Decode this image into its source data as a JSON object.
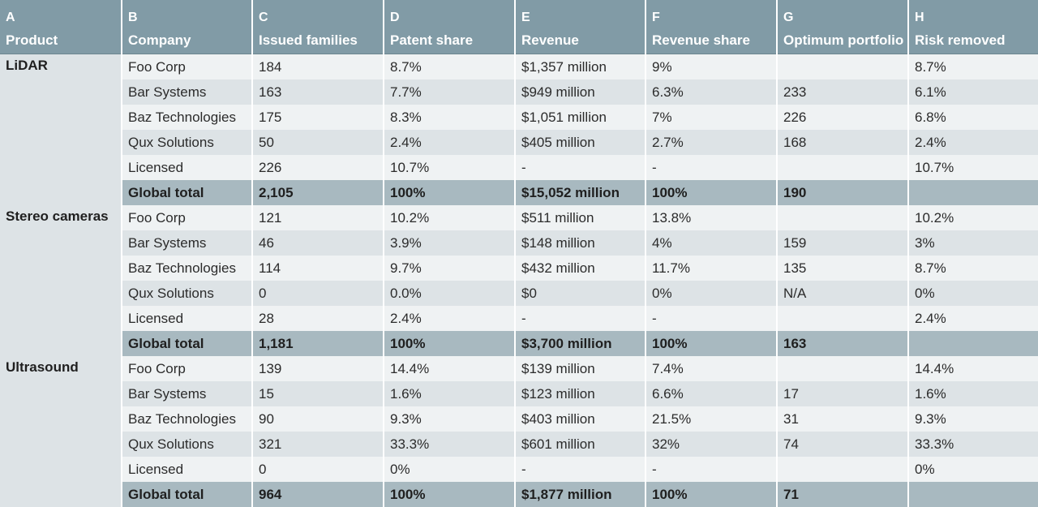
{
  "columns": {
    "letters": [
      "A",
      "B",
      "C",
      "D",
      "E",
      "F",
      "G",
      "H"
    ],
    "headers": [
      "Product",
      "Company",
      "Issued families",
      "Patent share",
      "Revenue",
      "Revenue share",
      "Optimum portfolio",
      "Risk removed"
    ]
  },
  "groups": [
    {
      "product": "LiDAR",
      "rows": [
        {
          "company": "Foo Corp",
          "issued": "184",
          "patent_share": "8.7%",
          "revenue": "$1,357 million",
          "revenue_share": "9%",
          "optimum": "",
          "risk": "8.7%"
        },
        {
          "company": "Bar Systems",
          "issued": "163",
          "patent_share": "7.7%",
          "revenue": "$949 million",
          "revenue_share": "6.3%",
          "optimum": "233",
          "risk": "6.1%"
        },
        {
          "company": "Baz Technologies",
          "issued": "175",
          "patent_share": "8.3%",
          "revenue": "$1,051 million",
          "revenue_share": "7%",
          "optimum": "226",
          "risk": "6.8%"
        },
        {
          "company": "Qux Solutions",
          "issued": "50",
          "patent_share": "2.4%",
          "revenue": "$405 million",
          "revenue_share": "2.7%",
          "optimum": "168",
          "risk": "2.4%"
        },
        {
          "company": "Licensed",
          "issued": "226",
          "patent_share": "10.7%",
          "revenue": "-",
          "revenue_share": "-",
          "optimum": "",
          "risk": "10.7%"
        }
      ],
      "total": {
        "company": "Global total",
        "issued": "2,105",
        "patent_share": "100%",
        "revenue": "$15,052 million",
        "revenue_share": "100%",
        "optimum": "190",
        "risk": ""
      }
    },
    {
      "product": "Stereo cameras",
      "rows": [
        {
          "company": "Foo Corp",
          "issued": "121",
          "patent_share": "10.2%",
          "revenue": "$511 million",
          "revenue_share": "13.8%",
          "optimum": "",
          "risk": "10.2%"
        },
        {
          "company": "Bar Systems",
          "issued": "46",
          "patent_share": "3.9%",
          "revenue": "$148 million",
          "revenue_share": "4%",
          "optimum": "159",
          "risk": "3%"
        },
        {
          "company": "Baz Technologies",
          "issued": "114",
          "patent_share": "9.7%",
          "revenue": "$432 million",
          "revenue_share": "11.7%",
          "optimum": "135",
          "risk": "8.7%"
        },
        {
          "company": "Qux Solutions",
          "issued": "0",
          "patent_share": "0.0%",
          "revenue": "$0",
          "revenue_share": "0%",
          "optimum": "N/A",
          "risk": "0%"
        },
        {
          "company": "Licensed",
          "issued": "28",
          "patent_share": "2.4%",
          "revenue": "-",
          "revenue_share": "-",
          "optimum": "",
          "risk": "2.4%"
        }
      ],
      "total": {
        "company": "Global total",
        "issued": "1,181",
        "patent_share": "100%",
        "revenue": "$3,700 million",
        "revenue_share": "100%",
        "optimum": "163",
        "risk": ""
      }
    },
    {
      "product": "Ultrasound",
      "rows": [
        {
          "company": "Foo Corp",
          "issued": "139",
          "patent_share": "14.4%",
          "revenue": "$139 million",
          "revenue_share": "7.4%",
          "optimum": "",
          "risk": "14.4%"
        },
        {
          "company": "Bar Systems",
          "issued": "15",
          "patent_share": "1.6%",
          "revenue": "$123 million",
          "revenue_share": "6.6%",
          "optimum": "17",
          "risk": "1.6%"
        },
        {
          "company": "Baz Technologies",
          "issued": "90",
          "patent_share": "9.3%",
          "revenue": "$403 million",
          "revenue_share": "21.5%",
          "optimum": "31",
          "risk": "9.3%"
        },
        {
          "company": "Qux Solutions",
          "issued": "321",
          "patent_share": "33.3%",
          "revenue": "$601 million",
          "revenue_share": "32%",
          "optimum": "74",
          "risk": "33.3%"
        },
        {
          "company": "Licensed",
          "issued": "0",
          "patent_share": "0%",
          "revenue": "-",
          "revenue_share": "-",
          "optimum": "",
          "risk": "0%"
        }
      ],
      "total": {
        "company": "Global total",
        "issued": "964",
        "patent_share": "100%",
        "revenue": "$1,877 million",
        "revenue_share": "100%",
        "optimum": "71",
        "risk": ""
      }
    }
  ]
}
